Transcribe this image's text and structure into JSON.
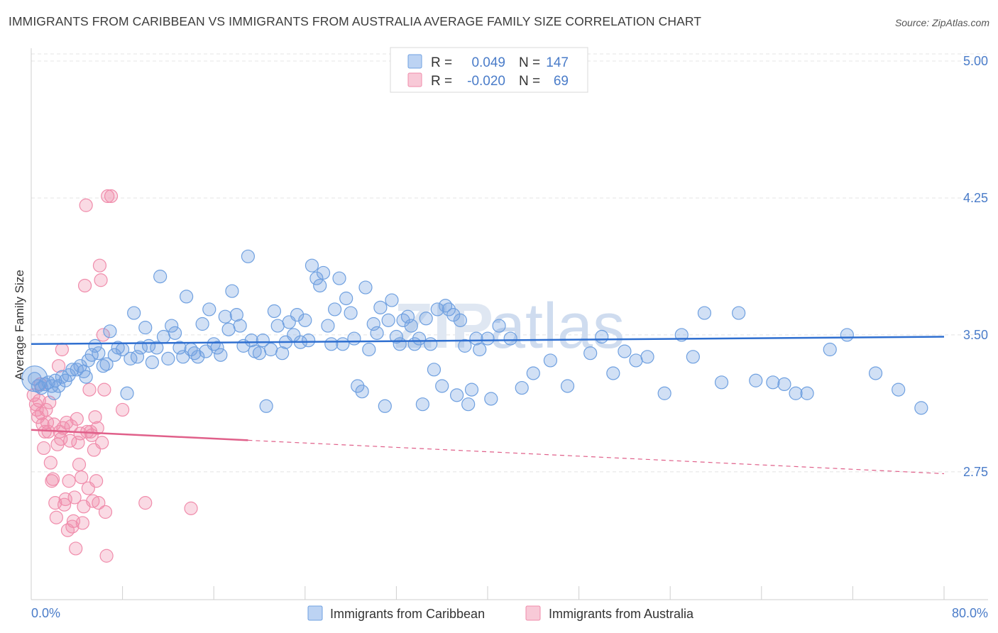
{
  "title": "IMMIGRANTS FROM CARIBBEAN VS IMMIGRANTS FROM AUSTRALIA AVERAGE FAMILY SIZE CORRELATION CHART",
  "source": "Source: ZipAtlas.com",
  "watermark": {
    "zip": "ZIP",
    "atlas": "atlas"
  },
  "colors": {
    "caribbean": "#6fa0e0",
    "caribbean_line": "#2f6fd0",
    "australia": "#f08cab",
    "australia_line": "#e0608a",
    "axis_text": "#4a7cc9"
  },
  "legend": {
    "rows": [
      {
        "r_label": "R =",
        "r_value": "0.049",
        "n_label": "N =",
        "n_value": "147"
      },
      {
        "r_label": "R =",
        "r_value": "-0.020",
        "n_label": "N =",
        "n_value": "69"
      }
    ]
  },
  "chart_data": {
    "type": "scatter",
    "title": "IMMIGRANTS FROM CARIBBEAN VS IMMIGRANTS FROM AUSTRALIA AVERAGE FAMILY SIZE CORRELATION CHART",
    "xlabel": "",
    "ylabel": "Average Family Size",
    "xlim": [
      0,
      80
    ],
    "ylim": [
      2.05,
      5.07
    ],
    "x_tick_labels": [
      "0.0%",
      "80.0%"
    ],
    "y_ticks": [
      2.75,
      3.5,
      4.25,
      5.0
    ],
    "y_tick_labels": [
      "2.75",
      "3.50",
      "4.25",
      "5.00"
    ],
    "grid": true,
    "legend_position": "top-center",
    "series": [
      {
        "name": "Immigrants from Caribbean",
        "r": 0.049,
        "n": 147,
        "trend": {
          "x": [
            0,
            80
          ],
          "y": [
            3.45,
            3.49
          ]
        },
        "points": [
          [
            0.3,
            3.26
          ],
          [
            0.6,
            3.22
          ],
          [
            0.9,
            3.21
          ],
          [
            1.2,
            3.23
          ],
          [
            1.5,
            3.24
          ],
          [
            1.8,
            3.22
          ],
          [
            2.1,
            3.25
          ],
          [
            2.4,
            3.22
          ],
          [
            2.7,
            3.27
          ],
          [
            3.0,
            3.25
          ],
          [
            3.3,
            3.28
          ],
          [
            3.6,
            3.31
          ],
          [
            4.0,
            3.31
          ],
          [
            4.3,
            3.33
          ],
          [
            4.6,
            3.3
          ],
          [
            5.0,
            3.36
          ],
          [
            5.3,
            3.39
          ],
          [
            5.6,
            3.44
          ],
          [
            5.9,
            3.4
          ],
          [
            6.3,
            3.33
          ],
          [
            6.6,
            3.34
          ],
          [
            6.9,
            3.52
          ],
          [
            7.3,
            3.39
          ],
          [
            7.6,
            3.43
          ],
          [
            8.0,
            3.42
          ],
          [
            8.4,
            3.18
          ],
          [
            8.7,
            3.37
          ],
          [
            9.0,
            3.62
          ],
          [
            9.3,
            3.38
          ],
          [
            9.6,
            3.43
          ],
          [
            10.0,
            3.54
          ],
          [
            10.3,
            3.44
          ],
          [
            10.6,
            3.35
          ],
          [
            11.0,
            3.43
          ],
          [
            11.3,
            3.82
          ],
          [
            11.6,
            3.49
          ],
          [
            12.0,
            3.37
          ],
          [
            12.3,
            3.55
          ],
          [
            12.6,
            3.51
          ],
          [
            13.0,
            3.43
          ],
          [
            13.3,
            3.38
          ],
          [
            13.6,
            3.71
          ],
          [
            14.0,
            3.42
          ],
          [
            14.3,
            3.4
          ],
          [
            14.6,
            3.38
          ],
          [
            15.0,
            3.56
          ],
          [
            15.3,
            3.41
          ],
          [
            15.6,
            3.64
          ],
          [
            16.0,
            3.45
          ],
          [
            16.3,
            3.43
          ],
          [
            16.6,
            3.39
          ],
          [
            17.0,
            3.6
          ],
          [
            17.3,
            3.53
          ],
          [
            17.6,
            3.74
          ],
          [
            18.0,
            3.61
          ],
          [
            18.3,
            3.55
          ],
          [
            18.6,
            3.44
          ],
          [
            19.0,
            3.93
          ],
          [
            19.3,
            3.47
          ],
          [
            19.6,
            3.41
          ],
          [
            20.0,
            3.4
          ],
          [
            20.3,
            3.47
          ],
          [
            20.6,
            3.11
          ],
          [
            21.0,
            3.42
          ],
          [
            21.3,
            3.63
          ],
          [
            21.6,
            3.55
          ],
          [
            22.0,
            3.4
          ],
          [
            22.3,
            3.46
          ],
          [
            22.6,
            3.57
          ],
          [
            23.0,
            3.5
          ],
          [
            23.3,
            3.61
          ],
          [
            23.6,
            3.46
          ],
          [
            24.0,
            3.58
          ],
          [
            24.3,
            3.47
          ],
          [
            24.6,
            3.88
          ],
          [
            25.0,
            3.81
          ],
          [
            25.3,
            3.77
          ],
          [
            25.6,
            3.84
          ],
          [
            26.0,
            3.55
          ],
          [
            26.3,
            3.45
          ],
          [
            26.6,
            3.64
          ],
          [
            27.0,
            3.81
          ],
          [
            27.3,
            3.45
          ],
          [
            27.6,
            3.7
          ],
          [
            28.0,
            3.62
          ],
          [
            28.3,
            3.48
          ],
          [
            28.6,
            3.22
          ],
          [
            29.0,
            3.19
          ],
          [
            29.3,
            3.76
          ],
          [
            29.6,
            3.42
          ],
          [
            30.0,
            3.56
          ],
          [
            30.3,
            3.51
          ],
          [
            30.6,
            3.65
          ],
          [
            31.0,
            3.11
          ],
          [
            31.3,
            3.58
          ],
          [
            31.6,
            3.69
          ],
          [
            32.0,
            3.49
          ],
          [
            32.3,
            3.45
          ],
          [
            32.6,
            3.58
          ],
          [
            33.0,
            3.6
          ],
          [
            33.3,
            3.55
          ],
          [
            33.6,
            3.45
          ],
          [
            34.0,
            3.48
          ],
          [
            34.3,
            3.12
          ],
          [
            34.6,
            3.59
          ],
          [
            35.0,
            3.45
          ],
          [
            35.3,
            3.31
          ],
          [
            35.6,
            3.64
          ],
          [
            36.0,
            3.22
          ],
          [
            36.3,
            3.66
          ],
          [
            36.6,
            3.64
          ],
          [
            37.0,
            3.61
          ],
          [
            37.3,
            3.17
          ],
          [
            37.6,
            3.58
          ],
          [
            38.0,
            3.44
          ],
          [
            38.3,
            3.12
          ],
          [
            38.6,
            3.2
          ],
          [
            39.0,
            3.48
          ],
          [
            39.3,
            3.42
          ],
          [
            40.0,
            3.48
          ],
          [
            40.3,
            3.15
          ],
          [
            41.0,
            3.55
          ],
          [
            42.0,
            3.48
          ],
          [
            43.0,
            3.21
          ],
          [
            44.0,
            3.29
          ],
          [
            45.5,
            3.36
          ],
          [
            47.0,
            3.22
          ],
          [
            49.0,
            3.4
          ],
          [
            50.0,
            3.49
          ],
          [
            51.0,
            3.29
          ],
          [
            52.0,
            3.41
          ],
          [
            53.0,
            3.36
          ],
          [
            54.0,
            3.38
          ],
          [
            55.5,
            3.18
          ],
          [
            57.0,
            3.5
          ],
          [
            58.0,
            3.38
          ],
          [
            59.0,
            3.62
          ],
          [
            60.5,
            3.24
          ],
          [
            62.0,
            3.62
          ],
          [
            63.5,
            3.25
          ],
          [
            65.0,
            3.24
          ],
          [
            66.0,
            3.23
          ],
          [
            67.0,
            3.18
          ],
          [
            68.0,
            3.18
          ],
          [
            70.0,
            3.42
          ],
          [
            71.5,
            3.5
          ],
          [
            74.0,
            3.29
          ],
          [
            76.0,
            3.2
          ],
          [
            78.0,
            3.1
          ],
          [
            2.0,
            3.18
          ],
          [
            4.8,
            3.27
          ]
        ]
      },
      {
        "name": "Immigrants from Australia",
        "r": -0.02,
        "n": 69,
        "trend": {
          "x": [
            0,
            80
          ],
          "y": [
            2.98,
            2.74
          ]
        },
        "points": [
          [
            0.2,
            3.17
          ],
          [
            0.4,
            3.12
          ],
          [
            0.5,
            3.09
          ],
          [
            0.6,
            3.05
          ],
          [
            0.7,
            3.14
          ],
          [
            0.8,
            3.23
          ],
          [
            0.9,
            3.07
          ],
          [
            1.0,
            3.01
          ],
          [
            1.1,
            2.88
          ],
          [
            1.2,
            2.97
          ],
          [
            1.3,
            3.09
          ],
          [
            1.4,
            3.02
          ],
          [
            1.5,
            2.97
          ],
          [
            1.6,
            3.13
          ],
          [
            1.7,
            2.8
          ],
          [
            1.8,
            2.7
          ],
          [
            1.9,
            2.71
          ],
          [
            2.0,
            3.01
          ],
          [
            2.1,
            2.58
          ],
          [
            2.2,
            2.5
          ],
          [
            2.3,
            2.9
          ],
          [
            2.4,
            3.33
          ],
          [
            2.5,
            2.97
          ],
          [
            2.6,
            2.93
          ],
          [
            2.7,
            3.42
          ],
          [
            2.8,
            2.99
          ],
          [
            2.9,
            2.57
          ],
          [
            3.0,
            2.6
          ],
          [
            3.1,
            3.02
          ],
          [
            3.2,
            2.43
          ],
          [
            3.3,
            2.7
          ],
          [
            3.4,
            2.92
          ],
          [
            3.5,
            3.0
          ],
          [
            3.6,
            2.45
          ],
          [
            3.7,
            2.48
          ],
          [
            3.8,
            2.61
          ],
          [
            3.9,
            2.33
          ],
          [
            4.0,
            3.04
          ],
          [
            4.1,
            2.91
          ],
          [
            4.2,
            2.79
          ],
          [
            4.3,
            2.96
          ],
          [
            4.4,
            2.72
          ],
          [
            4.5,
            2.47
          ],
          [
            4.6,
            2.56
          ],
          [
            4.7,
            3.77
          ],
          [
            4.8,
            4.21
          ],
          [
            4.9,
            2.97
          ],
          [
            5.0,
            2.66
          ],
          [
            5.1,
            3.2
          ],
          [
            5.2,
            2.97
          ],
          [
            5.3,
            2.95
          ],
          [
            5.4,
            2.59
          ],
          [
            5.5,
            2.87
          ],
          [
            5.6,
            3.05
          ],
          [
            5.7,
            2.7
          ],
          [
            5.8,
            2.99
          ],
          [
            5.9,
            2.58
          ],
          [
            6.0,
            3.88
          ],
          [
            6.1,
            3.8
          ],
          [
            6.2,
            2.91
          ],
          [
            6.3,
            3.5
          ],
          [
            6.4,
            3.2
          ],
          [
            6.5,
            2.53
          ],
          [
            6.6,
            2.29
          ],
          [
            6.7,
            4.26
          ],
          [
            7.0,
            4.26
          ],
          [
            8.0,
            3.09
          ],
          [
            10.0,
            2.58
          ],
          [
            14.0,
            2.55
          ]
        ]
      }
    ]
  },
  "bottom_legend": [
    {
      "label": "Immigrants from Caribbean"
    },
    {
      "label": "Immigrants from Australia"
    }
  ]
}
